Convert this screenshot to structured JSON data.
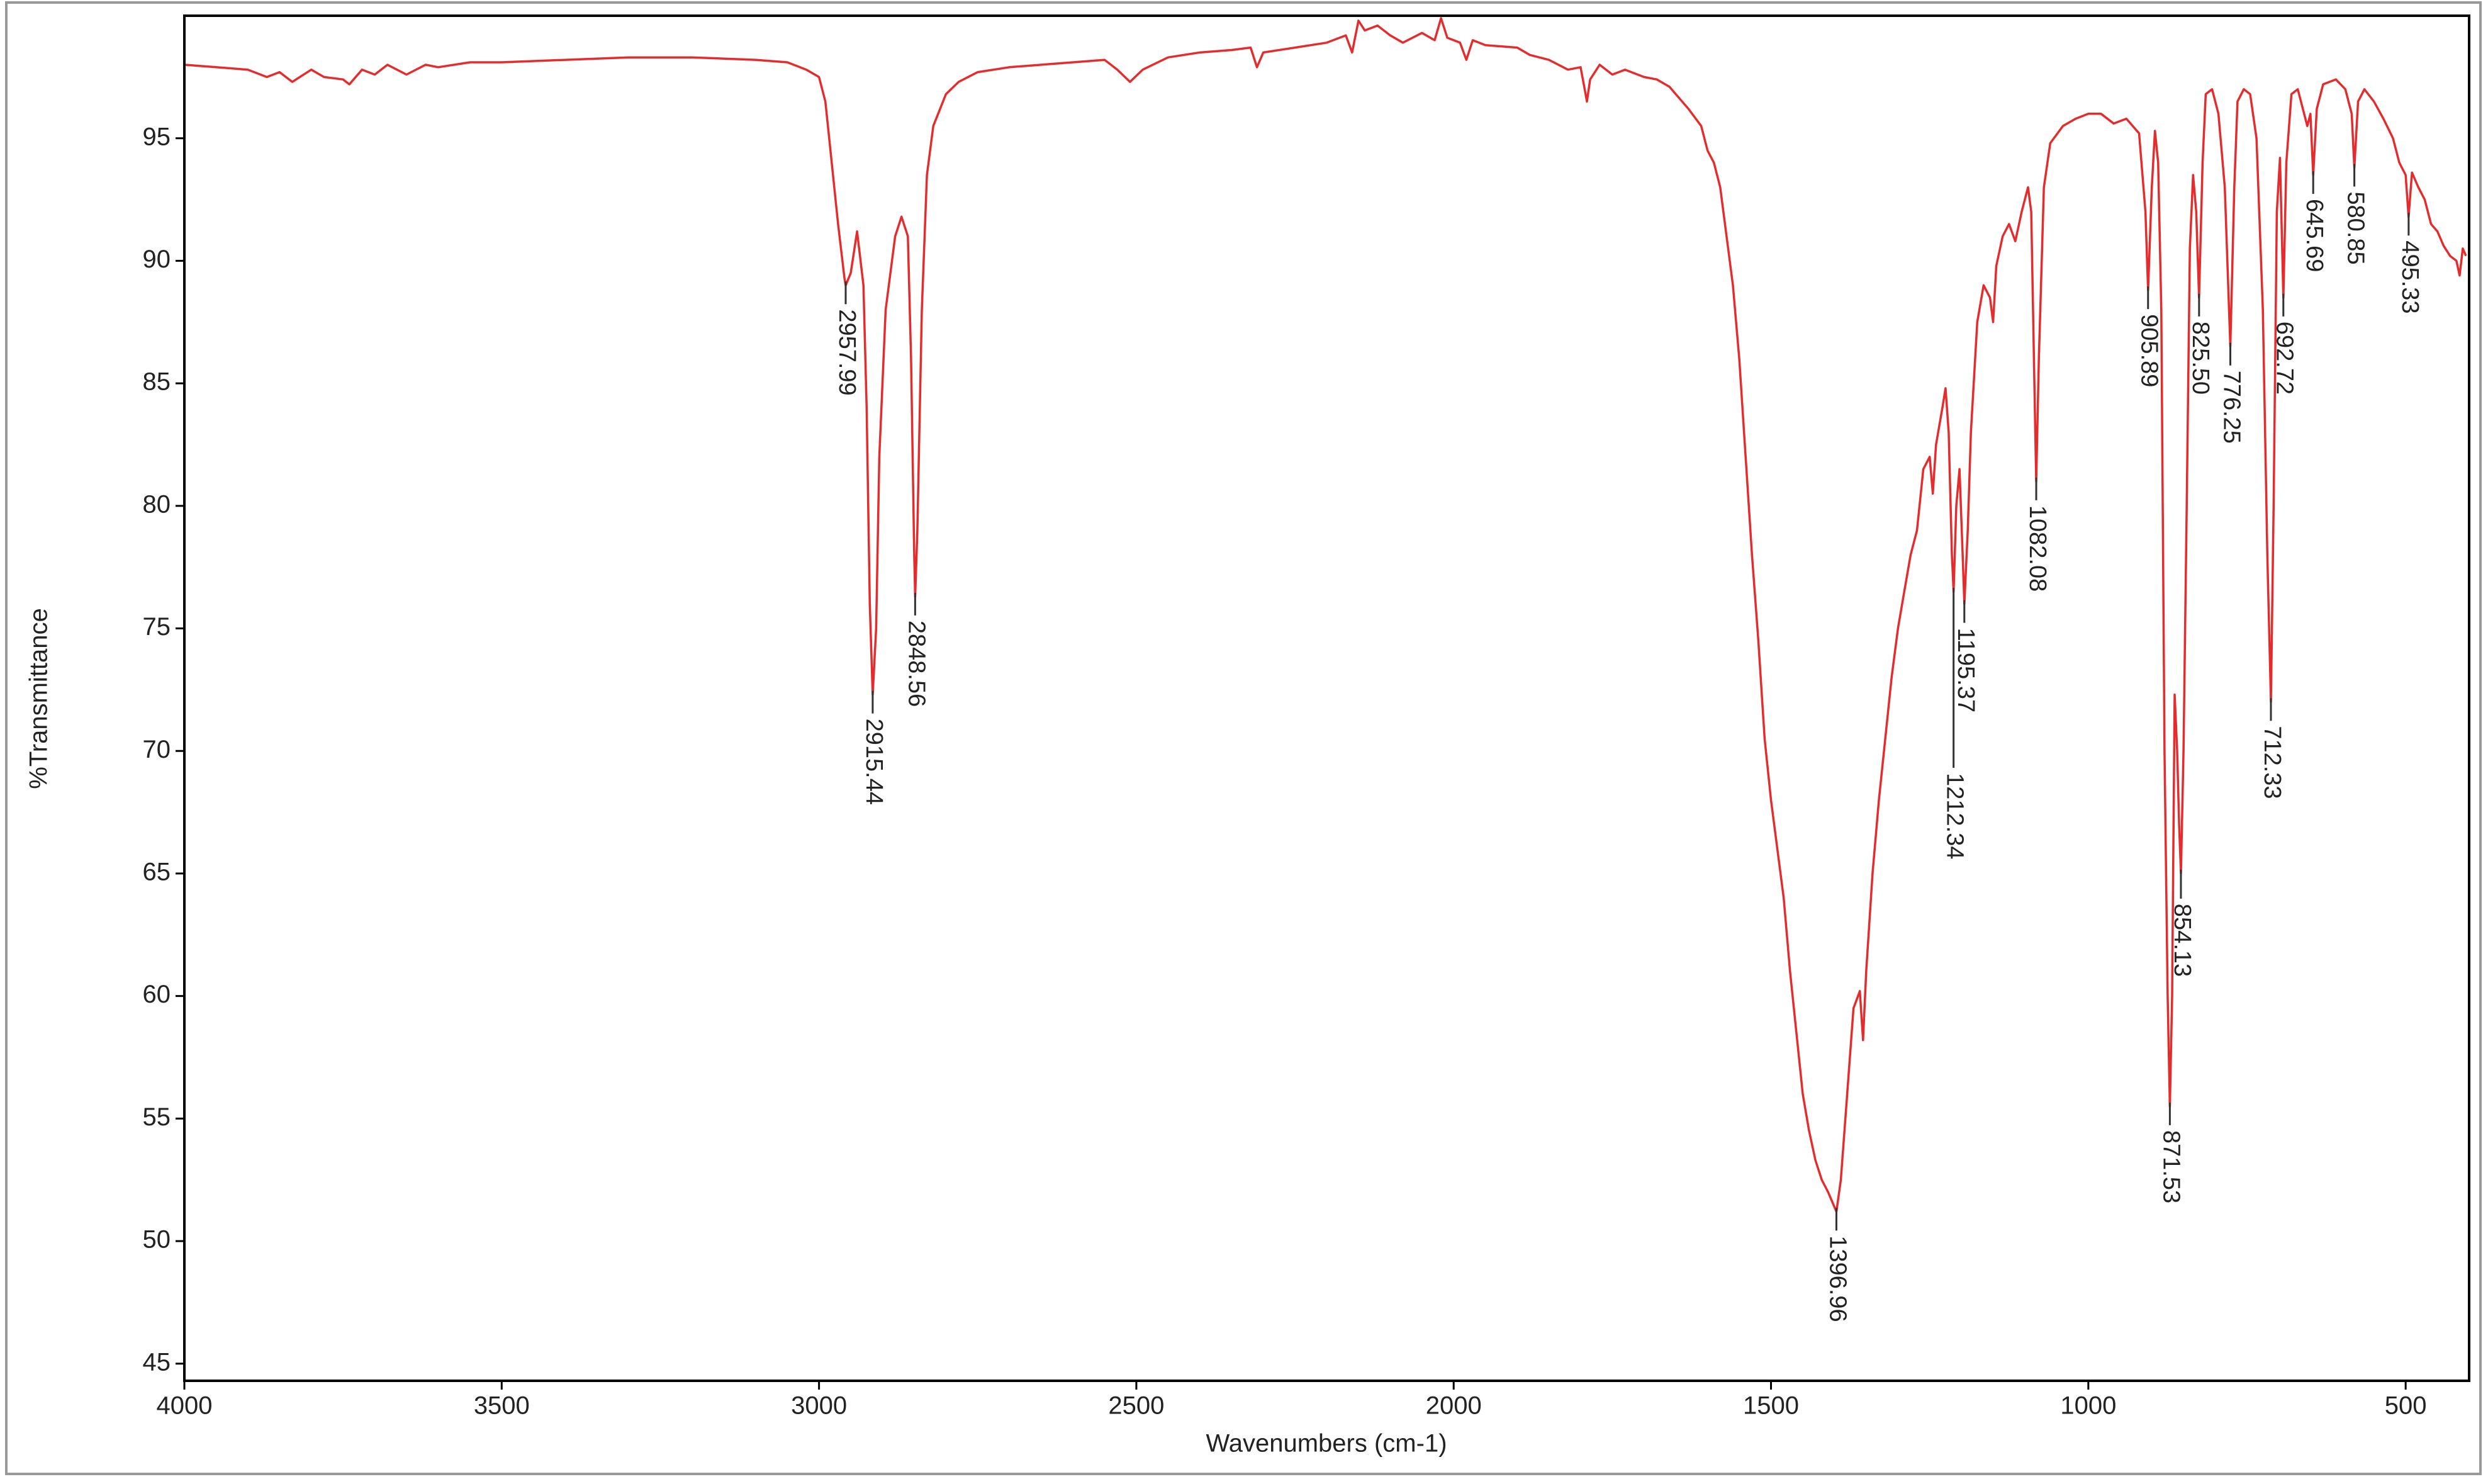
{
  "chart_data": {
    "type": "line",
    "x_label": "Wavenumbers (cm-1)",
    "y_label": "%Transmittance",
    "color": "#e52b2b",
    "xlim": [
      4000,
      400
    ],
    "ylim": [
      44.3,
      100
    ],
    "xticks": [
      4000,
      3500,
      3000,
      2500,
      2000,
      1500,
      1000,
      500
    ],
    "yticks": [
      45,
      50,
      55,
      60,
      65,
      70,
      75,
      80,
      85,
      90,
      95
    ],
    "x": [
      4000,
      3950,
      3900,
      3870,
      3850,
      3830,
      3800,
      3780,
      3750,
      3740,
      3720,
      3700,
      3680,
      3650,
      3620,
      3600,
      3550,
      3500,
      3400,
      3300,
      3200,
      3100,
      3050,
      3020,
      3000,
      2990,
      2980,
      2970,
      2960,
      2957.99,
      2950,
      2940,
      2930,
      2925,
      2920,
      2915.44,
      2910,
      2905,
      2895,
      2880,
      2870,
      2860,
      2855,
      2850,
      2848.56,
      2845,
      2838,
      2830,
      2820,
      2800,
      2780,
      2750,
      2700,
      2650,
      2600,
      2550,
      2530,
      2510,
      2490,
      2450,
      2400,
      2350,
      2320,
      2310,
      2300,
      2250,
      2200,
      2170,
      2160,
      2150,
      2140,
      2120,
      2100,
      2080,
      2050,
      2030,
      2020,
      2010,
      1990,
      1980,
      1970,
      1950,
      1900,
      1880,
      1850,
      1820,
      1800,
      1795,
      1790,
      1785,
      1770,
      1750,
      1730,
      1700,
      1680,
      1660,
      1650,
      1630,
      1610,
      1600,
      1590,
      1580,
      1570,
      1560,
      1550,
      1540,
      1530,
      1520,
      1510,
      1500,
      1490,
      1480,
      1470,
      1460,
      1450,
      1440,
      1430,
      1420,
      1410,
      1396.96,
      1390,
      1380,
      1370,
      1360,
      1355,
      1350,
      1340,
      1330,
      1320,
      1310,
      1300,
      1290,
      1280,
      1270,
      1260,
      1250,
      1245,
      1240,
      1230,
      1225,
      1220,
      1215,
      1212.34,
      1208,
      1203,
      1198,
      1195.37,
      1190,
      1185,
      1175,
      1165,
      1155,
      1150,
      1145,
      1135,
      1125,
      1115,
      1105,
      1095,
      1090,
      1085,
      1082.08,
      1078,
      1070,
      1060,
      1040,
      1020,
      1000,
      980,
      960,
      940,
      920,
      910,
      905.89,
      900,
      895,
      890,
      885,
      880,
      875,
      871.53,
      868,
      864,
      860,
      857,
      854.13,
      850,
      845,
      840,
      835,
      830,
      825.5,
      820,
      815,
      805,
      795,
      785,
      776.25,
      770,
      765,
      755,
      745,
      735,
      725,
      718,
      712.33,
      708,
      703,
      698,
      692.72,
      688,
      680,
      670,
      660,
      655,
      650,
      645.69,
      640,
      630,
      610,
      595,
      585,
      580.85,
      575,
      565,
      550,
      535,
      520,
      510,
      500,
      495.33,
      490,
      480,
      470,
      460,
      450,
      440,
      430,
      420,
      415,
      410,
      405
    ],
    "values": [
      98.0,
      97.9,
      97.8,
      97.5,
      97.7,
      97.3,
      97.8,
      97.5,
      97.4,
      97.2,
      97.8,
      97.6,
      98.0,
      97.6,
      98.0,
      97.9,
      98.1,
      98.1,
      98.2,
      98.3,
      98.3,
      98.2,
      98.1,
      97.8,
      97.5,
      96.5,
      94,
      91.5,
      89.3,
      89.0,
      89.5,
      91.2,
      89,
      84,
      76,
      72.3,
      75,
      82,
      88,
      91,
      91.8,
      91,
      86,
      78,
      76.3,
      79,
      88,
      93.5,
      95.5,
      96.8,
      97.3,
      97.7,
      97.9,
      98.0,
      98.1,
      98.2,
      97.8,
      97.3,
      97.8,
      98.3,
      98.5,
      98.6,
      98.7,
      97.9,
      98.5,
      98.7,
      98.9,
      99.2,
      98.5,
      99.8,
      99.4,
      99.6,
      99.2,
      98.9,
      99.3,
      99.0,
      99.9,
      99.1,
      98.9,
      98.2,
      99.0,
      98.8,
      98.7,
      98.4,
      98.2,
      97.8,
      97.9,
      97.2,
      96.5,
      97.4,
      98.0,
      97.6,
      97.8,
      97.5,
      97.4,
      97.1,
      96.8,
      96.2,
      95.5,
      94.5,
      94,
      93,
      91,
      89,
      86,
      82,
      78,
      74.5,
      70.5,
      68,
      66,
      64,
      61,
      58.5,
      56,
      54.5,
      53.3,
      52.5,
      52,
      51.2,
      52.5,
      56,
      59.5,
      60.2,
      58.2,
      61,
      65,
      68,
      70.5,
      73,
      75,
      76.5,
      78,
      79,
      81.5,
      82,
      80.5,
      82.5,
      84,
      84.8,
      83,
      78,
      76.5,
      80,
      81.5,
      78,
      76,
      79,
      83,
      87.5,
      89,
      88.5,
      87.5,
      89.8,
      91,
      91.5,
      90.8,
      92,
      93,
      92,
      85,
      81,
      86,
      93,
      94.8,
      95.5,
      95.8,
      96.0,
      96.0,
      95.6,
      95.8,
      95.2,
      92,
      88.8,
      93,
      95.3,
      94,
      88,
      70,
      60,
      55.5,
      60,
      72.3,
      70,
      67,
      65,
      70,
      80,
      90.5,
      93.5,
      92,
      88.5,
      94,
      96.8,
      97.0,
      96,
      93,
      86.5,
      93,
      96.5,
      97.0,
      96.8,
      95,
      88,
      78,
      72,
      80,
      92,
      94.2,
      88.5,
      94,
      96.8,
      97,
      96,
      95.5,
      96,
      93.5,
      96.2,
      97.2,
      97.4,
      97,
      96,
      93.8,
      96.5,
      97,
      96.5,
      95.8,
      95,
      94,
      93.5,
      91.8,
      93.6,
      93,
      92.5,
      91.5,
      91.2,
      90.6,
      90.2,
      90,
      89.4,
      90.5,
      90.2
    ],
    "annotations": [
      {
        "x": 2957.99,
        "y": 89.0,
        "text": "2957.99"
      },
      {
        "x": 2915.44,
        "y": 72.3,
        "text": "2915.44"
      },
      {
        "x": 2848.56,
        "y": 76.3,
        "text": "2848.56"
      },
      {
        "x": 1396.96,
        "y": 51.2,
        "text": "1396.96"
      },
      {
        "x": 1212.34,
        "y": 76.5,
        "text": "1212.34"
      },
      {
        "x": 1195.37,
        "y": 76.0,
        "text": "1195.37"
      },
      {
        "x": 1082.08,
        "y": 81.0,
        "text": "1082.08"
      },
      {
        "x": 905.89,
        "y": 88.8,
        "text": "905.89"
      },
      {
        "x": 871.53,
        "y": 55.5,
        "text": "871.53"
      },
      {
        "x": 854.13,
        "y": 65.0,
        "text": "854.13"
      },
      {
        "x": 825.5,
        "y": 88.5,
        "text": "825.50"
      },
      {
        "x": 776.25,
        "y": 86.5,
        "text": "776.25"
      },
      {
        "x": 712.33,
        "y": 72.0,
        "text": "712.33"
      },
      {
        "x": 692.72,
        "y": 88.5,
        "text": "692.72"
      },
      {
        "x": 645.69,
        "y": 93.5,
        "text": "645.69"
      },
      {
        "x": 580.85,
        "y": 93.8,
        "text": "580.85"
      },
      {
        "x": 495.33,
        "y": 91.8,
        "text": "495.33"
      }
    ]
  }
}
